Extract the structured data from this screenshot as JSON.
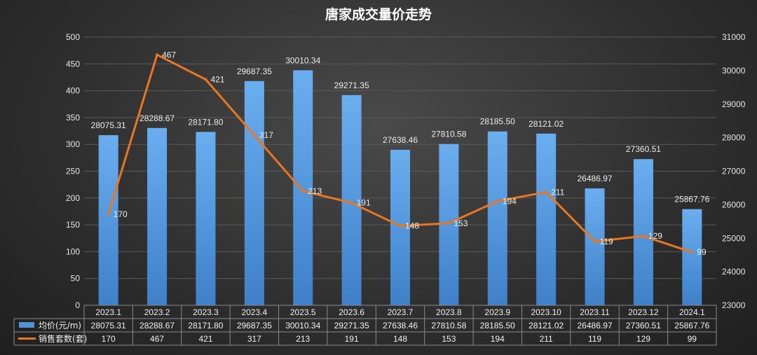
{
  "chart_data": {
    "type": "bar",
    "title": "唐家成交量价走势",
    "categories": [
      "2023.1",
      "2023.2",
      "2023.3",
      "2023.4",
      "2023.5",
      "2023.6",
      "2023.7",
      "2023.8",
      "2023.9",
      "2023.10",
      "2023.11",
      "2023.12",
      "2024.1"
    ],
    "series": [
      {
        "name": "均价(元/m)",
        "type": "bar",
        "axis": "right",
        "color": "#4f93d8",
        "values": [
          28075.31,
          28288.67,
          28171.8,
          29687.35,
          30010.34,
          29271.35,
          27638.46,
          27810.58,
          28185.5,
          28121.02,
          26486.97,
          27360.51,
          25867.76
        ]
      },
      {
        "name": "销售套数(套)",
        "type": "line",
        "axis": "left",
        "color": "#e87722",
        "values": [
          170,
          467,
          421,
          317,
          213,
          191,
          148,
          153,
          194,
          211,
          119,
          129,
          99
        ]
      }
    ],
    "y_left": {
      "min": 0,
      "max": 500,
      "step": 50
    },
    "y_right": {
      "min": 23000,
      "max": 31000,
      "step": 1000
    },
    "data_table": true,
    "grid": true
  }
}
